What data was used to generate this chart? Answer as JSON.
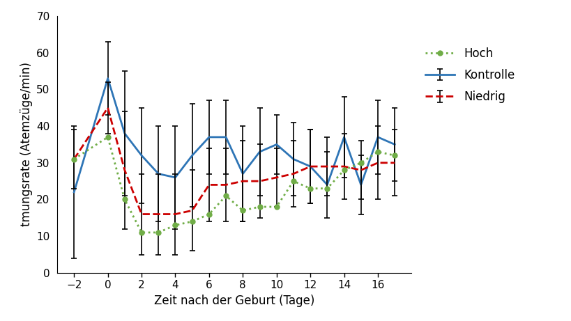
{
  "x": [
    -2,
    0,
    1,
    2,
    3,
    4,
    5,
    6,
    7,
    8,
    9,
    10,
    11,
    12,
    13,
    14,
    15,
    16,
    17
  ],
  "kontrolle_y": [
    22,
    53,
    38,
    32,
    27,
    26,
    32,
    37,
    37,
    27,
    33,
    35,
    31,
    29,
    24,
    37,
    24,
    37,
    35
  ],
  "kontrolle_err_up": [
    18,
    10,
    17,
    13,
    13,
    14,
    14,
    10,
    10,
    13,
    12,
    8,
    10,
    10,
    9,
    11,
    8,
    10,
    10
  ],
  "kontrolle_err_down": [
    18,
    10,
    17,
    13,
    13,
    14,
    14,
    10,
    10,
    13,
    12,
    8,
    10,
    10,
    9,
    11,
    8,
    10,
    10
  ],
  "niedrig_y": [
    31,
    45,
    28,
    16,
    16,
    16,
    17,
    24,
    24,
    25,
    25,
    26,
    27,
    29,
    29,
    29,
    28,
    30,
    30
  ],
  "niedrig_err_up": [
    8,
    7,
    16,
    11,
    11,
    11,
    11,
    10,
    10,
    11,
    10,
    8,
    9,
    10,
    8,
    9,
    8,
    10,
    9
  ],
  "niedrig_err_down": [
    8,
    7,
    16,
    11,
    11,
    11,
    11,
    10,
    10,
    11,
    10,
    8,
    9,
    10,
    8,
    9,
    8,
    10,
    9
  ],
  "hoch_y": [
    31,
    37,
    20,
    11,
    11,
    13,
    14,
    16,
    21,
    17,
    18,
    18,
    25,
    23,
    23,
    28,
    30,
    33,
    32
  ],
  "ylabel": "tmungsrate (Atemzüge/min)",
  "xlabel": "Zeit nach der Geburt (Tage)",
  "ylim": [
    0,
    70
  ],
  "yticks": [
    0,
    10,
    20,
    30,
    40,
    50,
    60,
    70
  ],
  "xticks": [
    -2,
    0,
    2,
    4,
    6,
    8,
    10,
    12,
    14,
    16
  ],
  "kontrolle_color": "#2E75B6",
  "niedrig_color": "#CC0000",
  "hoch_color": "#70AD47",
  "legend_labels": [
    "Kontrolle",
    "Niedrig",
    "Hoch"
  ],
  "background_color": "#ffffff"
}
